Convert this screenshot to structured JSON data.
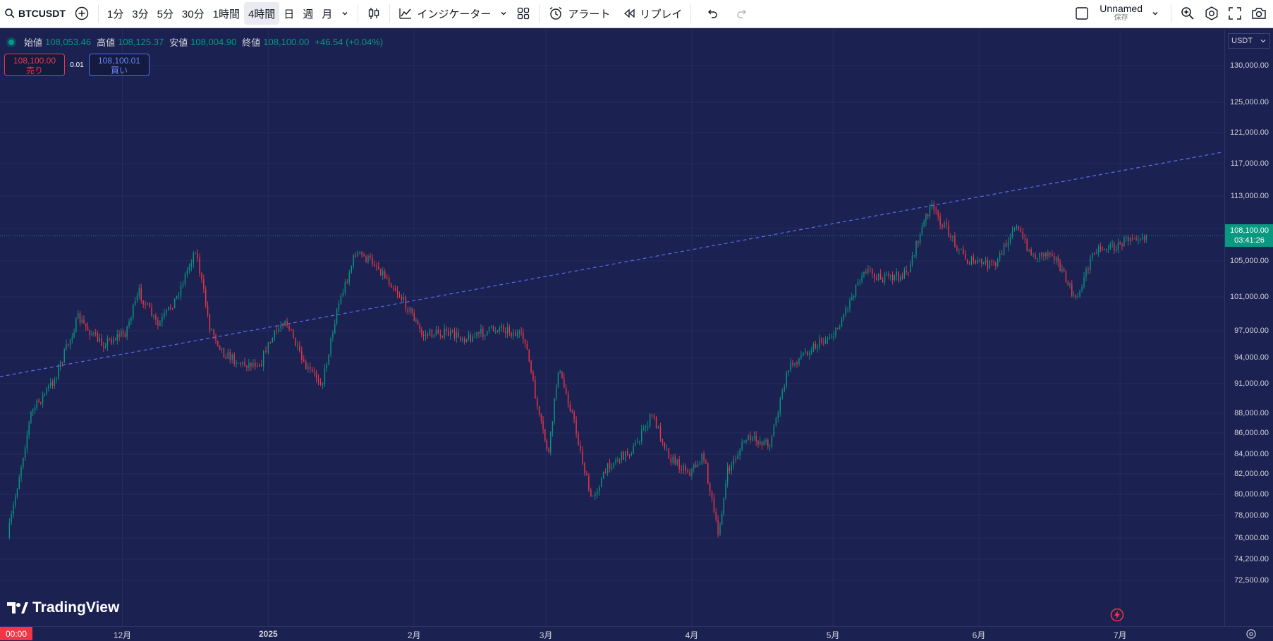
{
  "toolbar": {
    "symbol": "BTCUSDT",
    "intervals": [
      "1分",
      "3分",
      "5分",
      "30分",
      "1時間",
      "4時間",
      "日",
      "週",
      "月"
    ],
    "active_interval": "4時間",
    "indicators_label": "インジケーター",
    "alert_label": "アラート",
    "replay_label": "リプレイ",
    "layout_name": "Unnamed",
    "save_label": "保存"
  },
  "legend": {
    "open_label": "始値",
    "open": "108,053.46",
    "high_label": "高値",
    "high": "108,125.37",
    "low_label": "安値",
    "low": "108,004.90",
    "close_label": "終値",
    "close": "108,100.00",
    "change": "+46.54 (+0.04%)"
  },
  "trade": {
    "sell_price": "108,100.00",
    "sell_label": "売り",
    "spread": "0.01",
    "buy_price": "108,100.01",
    "buy_label": "買い"
  },
  "price_axis": {
    "currency": "USDT",
    "labels": [
      "130,000.00",
      "125,000.00",
      "121,000.00",
      "117,000.00",
      "113,000.00",
      "109,000.00",
      "105,000.00",
      "101,000.00",
      "97,000.00",
      "94,000.00",
      "91,000.00",
      "88,000.00",
      "86,000.00",
      "84,000.00",
      "82,000.00",
      "80,000.00",
      "78,000.00",
      "76,000.00",
      "74,200.00",
      "72,500.00"
    ],
    "last_price": "108,100.00",
    "countdown": "03:41:26"
  },
  "time_axis": {
    "cursor": "00:00",
    "labels": [
      "12月",
      "2025",
      "2月",
      "3月",
      "4月",
      "5月",
      "6月",
      "7月"
    ]
  },
  "watermark": "TradingView",
  "colors": {
    "up": "#089981",
    "down": "#f23645",
    "background": "#1b2150",
    "trendline": "#5b6cf0"
  },
  "chart_data": {
    "type": "line",
    "x": [
      "2024-11-07",
      "2024-11-12",
      "2024-11-17",
      "2024-11-22",
      "2024-11-27",
      "2024-12-02",
      "2024-12-05",
      "2024-12-09",
      "2024-12-13",
      "2024-12-17",
      "2024-12-20",
      "2024-12-23",
      "2024-12-27",
      "2024-12-31",
      "2025-01-01",
      "2025-01-05",
      "2025-01-09",
      "2025-01-13",
      "2025-01-16",
      "2025-01-20",
      "2025-01-24",
      "2025-01-28",
      "2025-02-01",
      "2025-02-03",
      "2025-02-07",
      "2025-02-13",
      "2025-02-20",
      "2025-02-25",
      "2025-02-28",
      "2025-03-02",
      "2025-03-04",
      "2025-03-07",
      "2025-03-11",
      "2025-03-15",
      "2025-03-20",
      "2025-03-24",
      "2025-03-28",
      "2025-04-01",
      "2025-04-04",
      "2025-04-07",
      "2025-04-09",
      "2025-04-13",
      "2025-04-18",
      "2025-04-22",
      "2025-04-26",
      "2025-05-02",
      "2025-05-08",
      "2025-05-12",
      "2025-05-17",
      "2025-05-22",
      "2025-05-26",
      "2025-05-30",
      "2025-06-05",
      "2025-06-09",
      "2025-06-13",
      "2025-06-17",
      "2025-06-22",
      "2025-06-26",
      "2025-07-01",
      "2025-07-04",
      "2025-07-07"
    ],
    "y": [
      76000,
      88000,
      91500,
      98500,
      95500,
      96800,
      101500,
      97500,
      101000,
      106500,
      97500,
      94500,
      93200,
      93500,
      95000,
      98500,
      93000,
      91200,
      99500,
      106000,
      104800,
      102200,
      99000,
      96500,
      96800,
      96200,
      97500,
      96000,
      87500,
      84000,
      92800,
      88000,
      79500,
      83000,
      84500,
      87800,
      83500,
      82200,
      83800,
      76200,
      82200,
      85500,
      85000,
      92800,
      94800,
      96800,
      104200,
      103000,
      103500,
      111800,
      108500,
      105000,
      104500,
      109500,
      105500,
      106200,
      100500,
      106500,
      106800,
      108200,
      108100
    ],
    "ylim": [
      71500,
      132000
    ],
    "trendline": [
      [
        "2024-11-05",
        91800
      ],
      [
        "2025-07-23",
        118500
      ]
    ],
    "last": 108100,
    "grid": true
  }
}
